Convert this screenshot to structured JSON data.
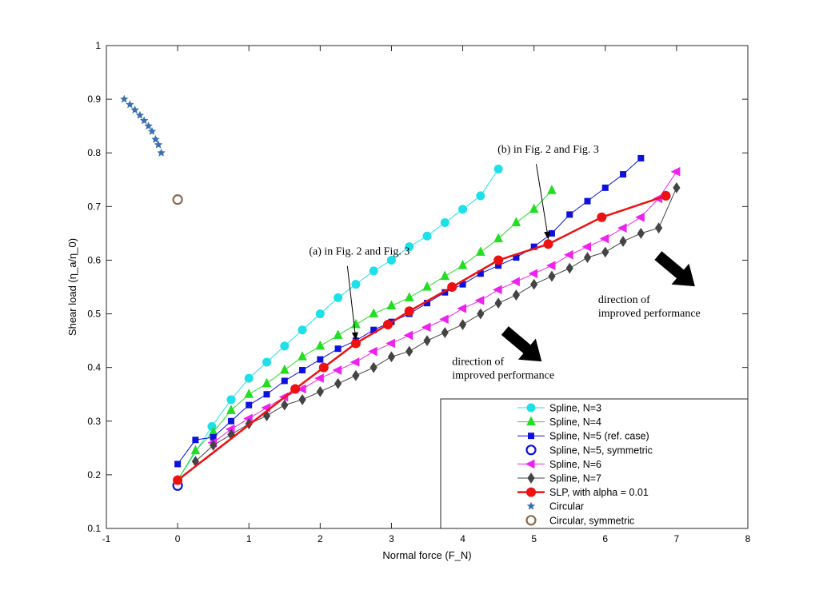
{
  "chart_data": {
    "type": "line",
    "xlabel": "Normal force (F_N)",
    "ylabel": "Shear load (η_a/η_0)",
    "xlim": [
      -1,
      8
    ],
    "ylim": [
      0.1,
      1
    ],
    "xticks": [
      "-1",
      "0",
      "1",
      "2",
      "3",
      "4",
      "5",
      "6",
      "7",
      "8"
    ],
    "yticks": [
      "0.1",
      "0.2",
      "0.3",
      "0.4",
      "0.5",
      "0.6",
      "0.7",
      "0.8",
      "0.9",
      "1"
    ],
    "grid": false,
    "legend_position": "bottom-right",
    "series": [
      {
        "name": "Spline, N=3",
        "color": "#1fe0e8",
        "marker": "circle",
        "x": [
          0.0,
          0.48,
          0.75,
          1.0,
          1.25,
          1.5,
          1.75,
          2.0,
          2.25,
          2.5,
          2.75,
          3.0,
          3.25,
          3.5,
          3.75,
          4.0,
          4.25,
          4.5
        ],
        "y": [
          0.19,
          0.29,
          0.34,
          0.38,
          0.41,
          0.44,
          0.47,
          0.5,
          0.53,
          0.555,
          0.58,
          0.6,
          0.625,
          0.645,
          0.67,
          0.695,
          0.72,
          0.77
        ]
      },
      {
        "name": "Spline, N=4",
        "color": "#22dd22",
        "marker": "triangle-up",
        "x": [
          0.0,
          0.25,
          0.5,
          0.75,
          1.0,
          1.25,
          1.5,
          1.75,
          2.0,
          2.25,
          2.5,
          2.75,
          3.0,
          3.25,
          3.5,
          3.75,
          4.0,
          4.25,
          4.5,
          4.75,
          5.0,
          5.25
        ],
        "y": [
          0.19,
          0.245,
          0.28,
          0.32,
          0.35,
          0.37,
          0.395,
          0.42,
          0.44,
          0.46,
          0.48,
          0.5,
          0.515,
          0.53,
          0.55,
          0.57,
          0.59,
          0.615,
          0.64,
          0.67,
          0.695,
          0.73
        ]
      },
      {
        "name": "Spline, N=5 (ref. case)",
        "color": "#1010dd",
        "marker": "square",
        "x": [
          0.0,
          0.25,
          0.5,
          0.75,
          1.0,
          1.25,
          1.5,
          1.75,
          2.0,
          2.25,
          2.5,
          2.75,
          3.0,
          3.25,
          3.5,
          3.75,
          4.0,
          4.25,
          4.5,
          4.75,
          5.0,
          5.25,
          5.5,
          5.75,
          6.0,
          6.25,
          6.5
        ],
        "y": [
          0.22,
          0.265,
          0.27,
          0.3,
          0.33,
          0.35,
          0.375,
          0.395,
          0.415,
          0.435,
          0.45,
          0.47,
          0.485,
          0.5,
          0.52,
          0.54,
          0.555,
          0.575,
          0.59,
          0.605,
          0.625,
          0.65,
          0.685,
          0.71,
          0.735,
          0.76,
          0.79
        ]
      },
      {
        "name": "Spline, N=5, symmetric",
        "color": "#1010dd",
        "marker": "open-circle",
        "x": [
          0.0
        ],
        "y": [
          0.18
        ]
      },
      {
        "name": "Spline, N=6",
        "color": "#ee22ee",
        "marker": "triangle-left",
        "x": [
          0.5,
          0.75,
          1.0,
          1.25,
          1.5,
          1.75,
          2.0,
          2.25,
          2.5,
          2.75,
          3.0,
          3.25,
          3.5,
          3.75,
          4.0,
          4.25,
          4.5,
          4.75,
          5.0,
          5.25,
          5.5,
          5.75,
          6.0,
          6.25,
          6.5,
          6.75,
          7.0
        ],
        "y": [
          0.26,
          0.285,
          0.305,
          0.325,
          0.345,
          0.36,
          0.38,
          0.395,
          0.41,
          0.43,
          0.445,
          0.46,
          0.475,
          0.49,
          0.51,
          0.525,
          0.545,
          0.56,
          0.575,
          0.59,
          0.61,
          0.625,
          0.64,
          0.66,
          0.68,
          0.715,
          0.765
        ]
      },
      {
        "name": "Spline, N=7",
        "color": "#444444",
        "marker": "diamond",
        "x": [
          0.25,
          0.5,
          0.75,
          1.0,
          1.25,
          1.5,
          1.75,
          2.0,
          2.25,
          2.5,
          2.75,
          3.0,
          3.25,
          3.5,
          3.75,
          4.0,
          4.25,
          4.5,
          4.75,
          5.0,
          5.25,
          5.5,
          5.75,
          6.0,
          6.25,
          6.5,
          6.75,
          7.0
        ],
        "y": [
          0.225,
          0.255,
          0.275,
          0.295,
          0.31,
          0.33,
          0.34,
          0.355,
          0.37,
          0.385,
          0.4,
          0.42,
          0.43,
          0.45,
          0.465,
          0.48,
          0.5,
          0.52,
          0.535,
          0.555,
          0.57,
          0.585,
          0.605,
          0.615,
          0.635,
          0.65,
          0.66,
          0.735
        ]
      },
      {
        "name": "SLP, with alpha = 0.01",
        "color": "#ee1111",
        "marker": "filled-circle",
        "x": [
          0.0,
          1.65,
          2.05,
          2.5,
          2.95,
          3.25,
          3.85,
          4.5,
          5.2,
          5.95,
          6.85
        ],
        "y": [
          0.19,
          0.36,
          0.4,
          0.445,
          0.48,
          0.505,
          0.55,
          0.6,
          0.63,
          0.68,
          0.72
        ]
      },
      {
        "name": "Circular",
        "color": "#3a6fb0",
        "marker": "star",
        "x": [
          -0.75,
          -0.67,
          -0.6,
          -0.53,
          -0.47,
          -0.41,
          -0.36,
          -0.31,
          -0.27,
          -0.23
        ],
        "y": [
          0.9,
          0.89,
          0.88,
          0.87,
          0.86,
          0.85,
          0.84,
          0.825,
          0.815,
          0.8
        ]
      },
      {
        "name": "Circular, symmetric",
        "color": "#8a6a4a",
        "marker": "open-circle",
        "x": [
          0.0
        ],
        "y": [
          0.713
        ]
      }
    ],
    "annotations": [
      {
        "text": "(a) in Fig. 2 and Fig. 3",
        "text_x": 2.55,
        "text_y": 0.61,
        "arrow_to_x": 2.5,
        "arrow_to_y": 0.452
      },
      {
        "text": "(b) in Fig. 2 and Fig. 3",
        "text_x": 5.2,
        "text_y": 0.8,
        "arrow_to_x": 5.2,
        "arrow_to_y": 0.64
      }
    ],
    "direction_labels": [
      {
        "line1": "direction of",
        "line2": "improved performance",
        "x": 5.9,
        "y": 0.52,
        "arrow_x": 7.0,
        "arrow_y": 0.58
      },
      {
        "line1": "direction of",
        "line2": "improved performance",
        "x": 3.85,
        "y": 0.405,
        "arrow_x": 4.85,
        "arrow_y": 0.44
      }
    ]
  }
}
